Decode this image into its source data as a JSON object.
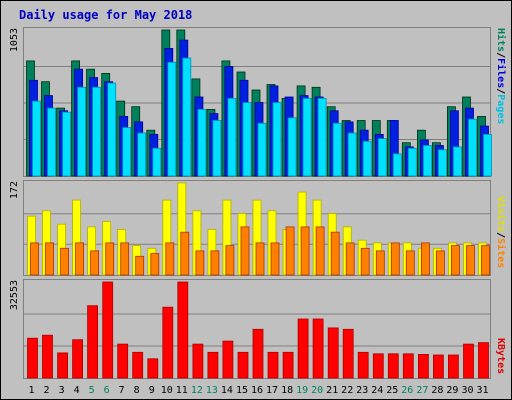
{
  "chart_data": [
    {
      "type": "bar",
      "title": "Daily usage for May 2018",
      "panel": "top",
      "ymax_label": "1053",
      "ylim": [
        0,
        1053
      ],
      "right_labels": [
        "Pages",
        "/",
        "Files",
        "/",
        "Hits"
      ],
      "categories": [
        "1",
        "2",
        "3",
        "4",
        "5",
        "6",
        "7",
        "8",
        "9",
        "10",
        "11",
        "12",
        "13",
        "14",
        "15",
        "16",
        "17",
        "18",
        "19",
        "20",
        "21",
        "22",
        "23",
        "24",
        "25",
        "26",
        "27",
        "28",
        "29",
        "30",
        "31"
      ],
      "weekend_days": [
        5,
        6,
        12,
        13,
        19,
        20,
        26,
        27
      ],
      "series": [
        {
          "name": "Hits",
          "color": "#00805c",
          "values": [
            830,
            680,
            490,
            830,
            770,
            740,
            540,
            500,
            330,
            1053,
            1053,
            700,
            480,
            830,
            750,
            620,
            660,
            560,
            650,
            640,
            500,
            400,
            400,
            400,
            400,
            240,
            330,
            240,
            500,
            570,
            430
          ]
        },
        {
          "name": "Files",
          "color": "#0020e0",
          "values": [
            690,
            580,
            470,
            770,
            710,
            680,
            430,
            390,
            300,
            920,
            980,
            570,
            450,
            790,
            690,
            530,
            650,
            570,
            580,
            570,
            470,
            390,
            330,
            300,
            400,
            210,
            260,
            220,
            470,
            490,
            360
          ]
        },
        {
          "name": "Pages",
          "color": "#00e0ff",
          "values": [
            540,
            490,
            460,
            640,
            640,
            670,
            350,
            310,
            200,
            820,
            850,
            480,
            400,
            560,
            530,
            380,
            530,
            420,
            560,
            560,
            380,
            310,
            250,
            270,
            160,
            200,
            220,
            190,
            210,
            410,
            300
          ]
        }
      ]
    },
    {
      "type": "bar",
      "panel": "middle",
      "ymax_label": "172",
      "ylim": [
        0,
        172
      ],
      "right_labels": [
        "Sites",
        "/",
        "Visits"
      ],
      "categories": [
        "1",
        "2",
        "3",
        "4",
        "5",
        "6",
        "7",
        "8",
        "9",
        "10",
        "11",
        "12",
        "13",
        "14",
        "15",
        "16",
        "17",
        "18",
        "19",
        "20",
        "21",
        "22",
        "23",
        "24",
        "25",
        "26",
        "27",
        "28",
        "29",
        "30",
        "31"
      ],
      "series": [
        {
          "name": "Visits",
          "color": "#ffff00",
          "values": [
            110,
            120,
            95,
            140,
            90,
            100,
            85,
            55,
            50,
            140,
            172,
            120,
            85,
            140,
            115,
            140,
            120,
            85,
            155,
            140,
            115,
            90,
            65,
            60,
            60,
            60,
            50,
            50,
            60,
            60,
            60
          ]
        },
        {
          "name": "Sites",
          "color": "#ff8000",
          "values": [
            60,
            60,
            50,
            60,
            45,
            60,
            60,
            35,
            40,
            60,
            80,
            45,
            45,
            55,
            90,
            60,
            60,
            90,
            90,
            90,
            80,
            60,
            50,
            45,
            60,
            45,
            60,
            45,
            55,
            55,
            55
          ]
        }
      ]
    },
    {
      "type": "bar",
      "panel": "bottom",
      "ymax_label": "32553",
      "ylim": [
        0,
        32553
      ],
      "right_labels": [
        "KBytes"
      ],
      "categories": [
        "1",
        "2",
        "3",
        "4",
        "5",
        "6",
        "7",
        "8",
        "9",
        "10",
        "11",
        "12",
        "13",
        "14",
        "15",
        "16",
        "17",
        "18",
        "19",
        "20",
        "21",
        "22",
        "23",
        "24",
        "25",
        "26",
        "27",
        "28",
        "29",
        "30",
        "31"
      ],
      "series": [
        {
          "name": "KBytes",
          "color": "#ff0000",
          "values": [
            13500,
            14500,
            8500,
            13000,
            24500,
            32553,
            11500,
            8700,
            6500,
            24000,
            32553,
            11500,
            8700,
            12500,
            8700,
            16500,
            8700,
            8700,
            20000,
            20000,
            17000,
            16500,
            8700,
            8200,
            8200,
            8200,
            8000,
            7800,
            7800,
            11500,
            12000
          ]
        }
      ]
    }
  ],
  "colors": {
    "background": "#c0c0c0",
    "grid": "#808080",
    "title": "#0000c0",
    "right_label_colors": {
      "Pages": "#00c0e0",
      "Files": "#0000e0",
      "Hits": "#008060",
      "Sites": "#ff8000",
      "Visits": "#e0e000",
      "KBytes": "#e00000",
      "slash": "#000000"
    },
    "weekday_label": "#000000",
    "weekend_label": "#008060"
  }
}
